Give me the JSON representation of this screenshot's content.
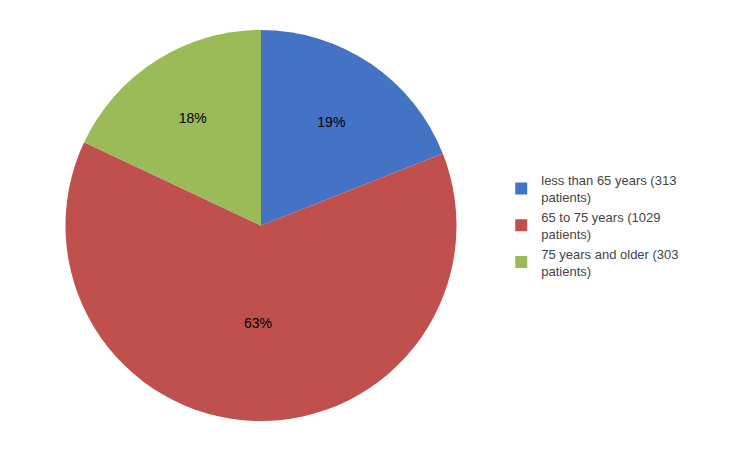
{
  "chart_data": {
    "type": "pie",
    "categories": [
      "less than 65 years (313\npatients)",
      "65 to 75 years (1029\npatients)",
      "75 years and older (303\npatients)"
    ],
    "values": [
      19,
      63,
      18
    ],
    "value_labels": [
      "19%",
      "63%",
      "18%"
    ],
    "colors": [
      "#4472C4",
      "#C0504D",
      "#9BBB59"
    ],
    "data_labels": true,
    "legend": "right"
  }
}
